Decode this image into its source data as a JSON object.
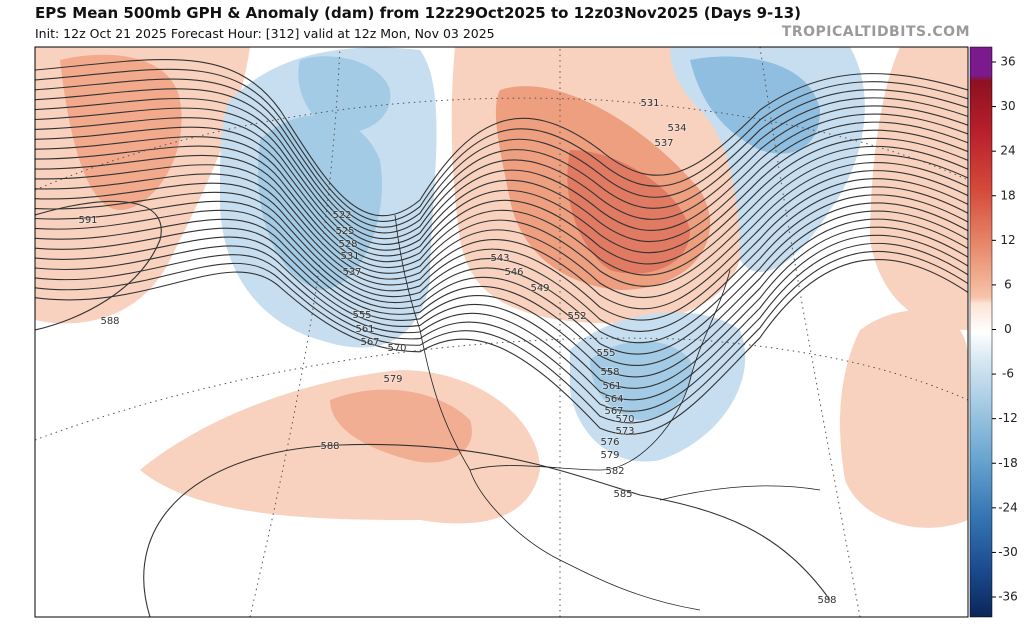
{
  "header": {
    "title": "EPS Mean 500mb GPH & Anomaly (dam) from 12z29Oct2025 to 12z03Nov2025 (Days 9-13)",
    "subtitle": "Init: 12z Oct 21 2025   Forecast Hour: [312]   valid at 12z Mon, Nov 03 2025",
    "watermark": "TROPICALTIDBITS.COM"
  },
  "colorbar": {
    "ticks": [
      36,
      30,
      24,
      18,
      12,
      6,
      0,
      -6,
      -12,
      -18,
      -24,
      -30,
      -36
    ]
  },
  "contour_labels": [
    591,
    588,
    522,
    525,
    528,
    531,
    537,
    555,
    561,
    567,
    570,
    579,
    588,
    543,
    546,
    549,
    552,
    531,
    534,
    537,
    555,
    558,
    561,
    564,
    567,
    570,
    573,
    576,
    579,
    582,
    585,
    588
  ]
}
